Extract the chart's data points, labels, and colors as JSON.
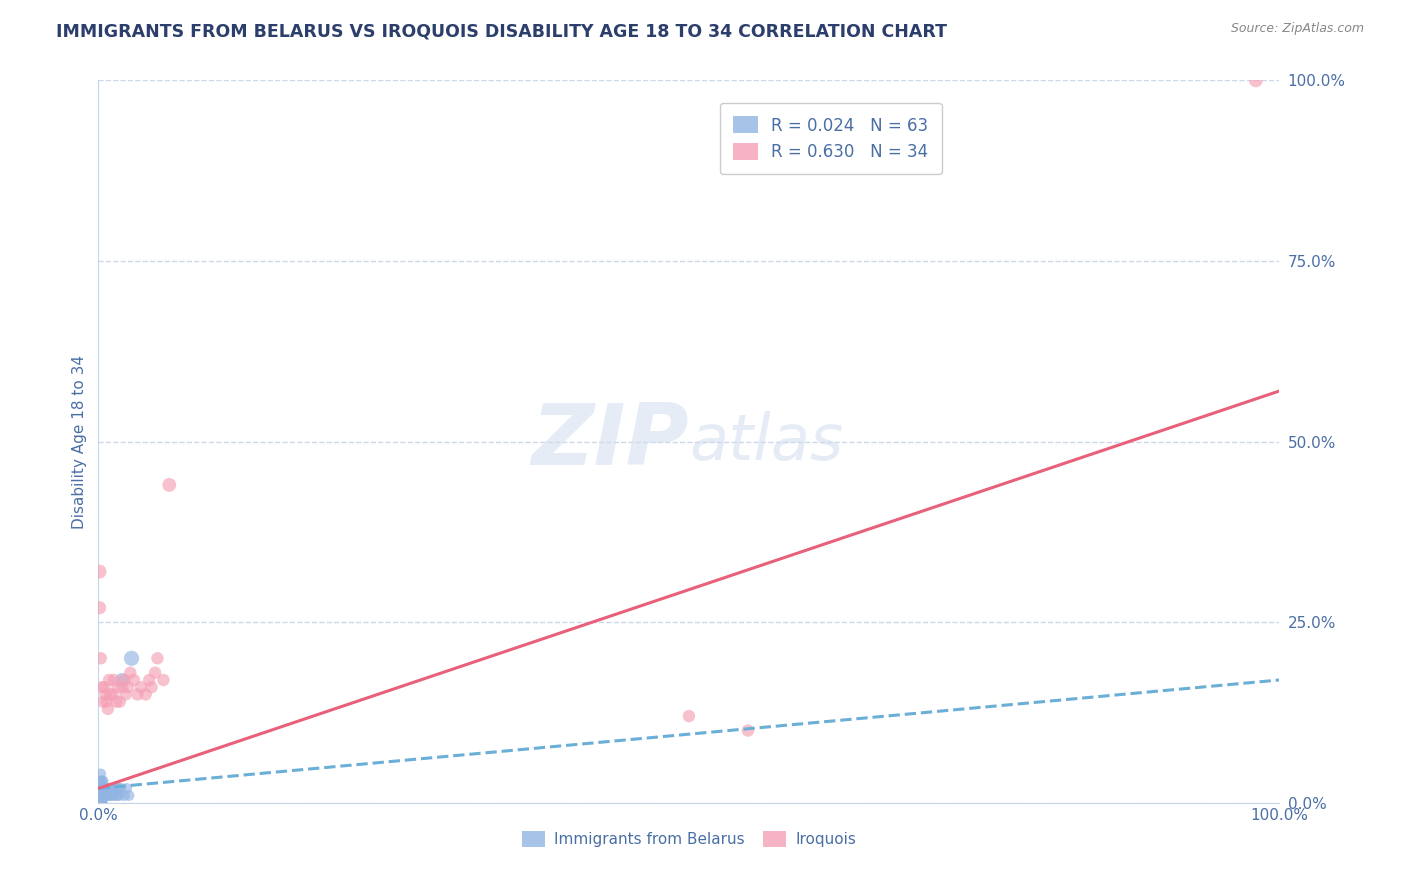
{
  "title": "IMMIGRANTS FROM BELARUS VS IROQUOIS DISABILITY AGE 18 TO 34 CORRELATION CHART",
  "source": "Source: ZipAtlas.com",
  "ylabel": "Disability Age 18 to 34",
  "xmin": 0.0,
  "xmax": 1.0,
  "ymin": 0.0,
  "ymax": 1.0,
  "yticks": [
    0.0,
    0.25,
    0.5,
    0.75,
    1.0
  ],
  "ytick_labels": [
    "0.0%",
    "25.0%",
    "50.0%",
    "75.0%",
    "100.0%"
  ],
  "xtick_labels": [
    "0.0%",
    "100.0%"
  ],
  "legend_r1": "R = 0.024   N = 63",
  "legend_r2": "R = 0.630   N = 34",
  "series1_color": "#92b4e3",
  "series2_color": "#f4a0b5",
  "trend1_color": "#6baed6",
  "trend2_color": "#e8607a",
  "watermark_zip": "ZIP",
  "watermark_atlas": "atlas",
  "title_color": "#2c3e6b",
  "tick_label_color": "#4a6fa5",
  "background_color": "#ffffff",
  "grid_color": "#c8d4e8",
  "series1_name": "Immigrants from Belarus",
  "series2_name": "Iroquois",
  "belarus_x": [
    0.001,
    0.001,
    0.001,
    0.001,
    0.001,
    0.002,
    0.001,
    0.001,
    0.001,
    0.001,
    0.001,
    0.001,
    0.001,
    0.001,
    0.001,
    0.001,
    0.001,
    0.001,
    0.001,
    0.001,
    0.001,
    0.001,
    0.001,
    0.001,
    0.001,
    0.002,
    0.002,
    0.002,
    0.002,
    0.002,
    0.002,
    0.002,
    0.002,
    0.003,
    0.003,
    0.003,
    0.003,
    0.004,
    0.004,
    0.004,
    0.005,
    0.005,
    0.006,
    0.006,
    0.007,
    0.007,
    0.008,
    0.009,
    0.01,
    0.011,
    0.012,
    0.013,
    0.014,
    0.015,
    0.016,
    0.017,
    0.018,
    0.019,
    0.02,
    0.022,
    0.024,
    0.026,
    0.028
  ],
  "belarus_y": [
    0.0,
    0.0,
    0.0,
    0.0,
    0.0,
    0.0,
    0.0,
    0.0,
    0.0,
    0.0,
    0.0,
    0.0,
    0.0,
    0.0,
    0.01,
    0.01,
    0.01,
    0.01,
    0.01,
    0.01,
    0.02,
    0.02,
    0.02,
    0.03,
    0.03,
    0.0,
    0.0,
    0.01,
    0.01,
    0.02,
    0.02,
    0.03,
    0.04,
    0.0,
    0.01,
    0.02,
    0.03,
    0.01,
    0.02,
    0.03,
    0.01,
    0.02,
    0.01,
    0.02,
    0.01,
    0.02,
    0.01,
    0.02,
    0.01,
    0.02,
    0.01,
    0.02,
    0.01,
    0.02,
    0.01,
    0.02,
    0.01,
    0.02,
    0.17,
    0.01,
    0.02,
    0.01,
    0.2
  ],
  "belarus_size": [
    120,
    100,
    90,
    80,
    80,
    80,
    100,
    90,
    80,
    70,
    60,
    60,
    60,
    50,
    50,
    50,
    50,
    50,
    50,
    50,
    50,
    50,
    50,
    50,
    50,
    60,
    60,
    60,
    60,
    60,
    60,
    60,
    60,
    70,
    70,
    70,
    70,
    60,
    60,
    60,
    60,
    60,
    60,
    60,
    60,
    60,
    60,
    60,
    60,
    60,
    60,
    60,
    60,
    60,
    60,
    60,
    60,
    60,
    100,
    60,
    60,
    60,
    120
  ],
  "iroquois_x": [
    0.001,
    0.001,
    0.002,
    0.003,
    0.004,
    0.005,
    0.006,
    0.007,
    0.008,
    0.009,
    0.01,
    0.012,
    0.013,
    0.015,
    0.016,
    0.018,
    0.02,
    0.022,
    0.023,
    0.025,
    0.027,
    0.03,
    0.033,
    0.036,
    0.04,
    0.043,
    0.045,
    0.048,
    0.05,
    0.055,
    0.06,
    0.5,
    0.55,
    0.98
  ],
  "iroquois_y": [
    0.32,
    0.27,
    0.2,
    0.16,
    0.14,
    0.16,
    0.15,
    0.14,
    0.13,
    0.17,
    0.15,
    0.15,
    0.17,
    0.14,
    0.16,
    0.14,
    0.16,
    0.17,
    0.15,
    0.16,
    0.18,
    0.17,
    0.15,
    0.16,
    0.15,
    0.17,
    0.16,
    0.18,
    0.2,
    0.17,
    0.44,
    0.12,
    0.1,
    1.0
  ],
  "iroquois_size": [
    100,
    90,
    80,
    80,
    80,
    80,
    80,
    80,
    80,
    80,
    80,
    80,
    80,
    80,
    80,
    80,
    80,
    80,
    80,
    80,
    80,
    80,
    80,
    80,
    80,
    80,
    80,
    80,
    80,
    80,
    100,
    80,
    80,
    100
  ],
  "trend1_x": [
    0.0,
    1.0
  ],
  "trend1_y": [
    0.02,
    0.17
  ],
  "trend2_x": [
    0.0,
    1.0
  ],
  "trend2_y": [
    0.02,
    0.57
  ]
}
